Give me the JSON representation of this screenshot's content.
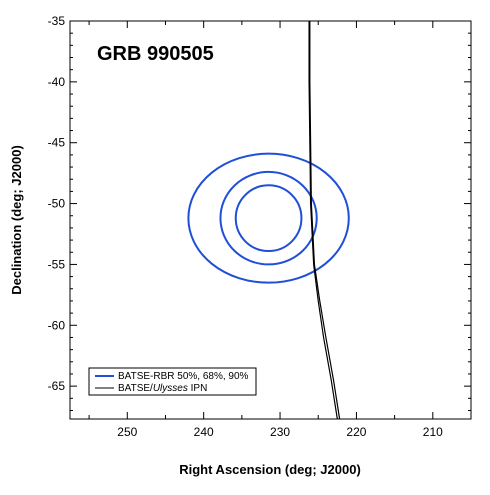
{
  "chart_data": {
    "type": "line",
    "title": "GRB 990505",
    "xlabel": "Right Ascension (deg; J2000)",
    "ylabel": "Declination (deg; J2000)",
    "xlim": [
      257.5,
      205
    ],
    "ylim": [
      -67.7,
      -35
    ],
    "x_reversed": true,
    "x_ticks": [
      250,
      240,
      230,
      220,
      210
    ],
    "y_ticks": [
      -35,
      -40,
      -45,
      -50,
      -55,
      -60,
      -65
    ],
    "x_tick_labels": [
      "250",
      "240",
      "230",
      "220",
      "210"
    ],
    "y_tick_labels": [
      "-35",
      "-40",
      "-45",
      "-50",
      "-55",
      "-60",
      "-65"
    ],
    "grid": false,
    "legend": {
      "placement": "bottom-left",
      "entries": [
        {
          "label": "BATSE-RBR 50%, 68%, 90%",
          "color": "#1f4fd6"
        },
        {
          "label_parts": [
            "BATSE/",
            "Ulysses",
            " IPN"
          ],
          "color": "#000000"
        }
      ]
    },
    "series": [
      {
        "name": "BATSE-RBR 50%, 68%, 90%",
        "color": "#1f4fd6",
        "kind": "error-contours",
        "center": [
          231.5,
          -51.2
        ],
        "contours": [
          {
            "level": "50%",
            "ra_halfwidth": 4.3,
            "dec_halfwidth": 2.7
          },
          {
            "level": "68%",
            "ra_halfwidth": 6.3,
            "dec_halfwidth": 3.8
          },
          {
            "level": "90%",
            "ra_halfwidth": 10.5,
            "dec_halfwidth": 5.3
          }
        ]
      },
      {
        "name": "BATSE/Ulysses IPN",
        "color": "#000000",
        "kind": "annulus-edges",
        "lines": [
          {
            "x": [
              226.1,
              226.1,
              226.0,
              225.9,
              225.5,
              224.8,
              224.0,
              223.0,
              222.2
            ],
            "y": [
              -35.0,
              -40.0,
              -45.0,
              -50.0,
              -55.0,
              -58.0,
              -61.0,
              -64.5,
              -67.7
            ]
          },
          {
            "x": [
              226.2,
              226.2,
              226.1,
              226.0,
              225.6,
              225.0,
              224.3,
              223.3,
              222.5
            ],
            "y": [
              -35.0,
              -40.0,
              -45.0,
              -50.0,
              -55.0,
              -58.0,
              -61.0,
              -64.5,
              -67.7
            ]
          }
        ]
      }
    ]
  }
}
